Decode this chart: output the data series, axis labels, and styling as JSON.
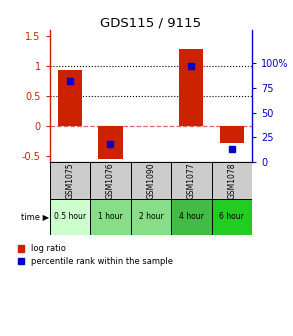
{
  "title": "GDS115 / 9115",
  "samples": [
    "GSM1075",
    "GSM1076",
    "GSM1090",
    "GSM1077",
    "GSM1078"
  ],
  "time_labels": [
    "0.5 hour",
    "1 hour",
    "2 hour",
    "4 hour",
    "6 hour"
  ],
  "time_colors": [
    "#ccffcc",
    "#88dd88",
    "#88dd88",
    "#44bb44",
    "#22cc22"
  ],
  "log_ratios": [
    0.93,
    -0.55,
    0.0,
    1.28,
    -0.28
  ],
  "percentile_ranks": [
    82,
    18,
    null,
    97,
    13
  ],
  "bar_color": "#cc2200",
  "dot_color": "#0000cc",
  "ylim_left": [
    -0.6,
    1.6
  ],
  "ylim_right": [
    0,
    133.33
  ],
  "yticks_left": [
    -0.5,
    0.0,
    0.5,
    1.0,
    1.5
  ],
  "yticks_right_vals": [
    0,
    25,
    50,
    75,
    100
  ],
  "yticks_right_labels": [
    "0",
    "25",
    "50",
    "75",
    "100%"
  ],
  "hlines_dotted": [
    0.5,
    1.0
  ],
  "hline_dashed_color": "#dd6666",
  "bar_width": 0.6,
  "n_samples": 5
}
